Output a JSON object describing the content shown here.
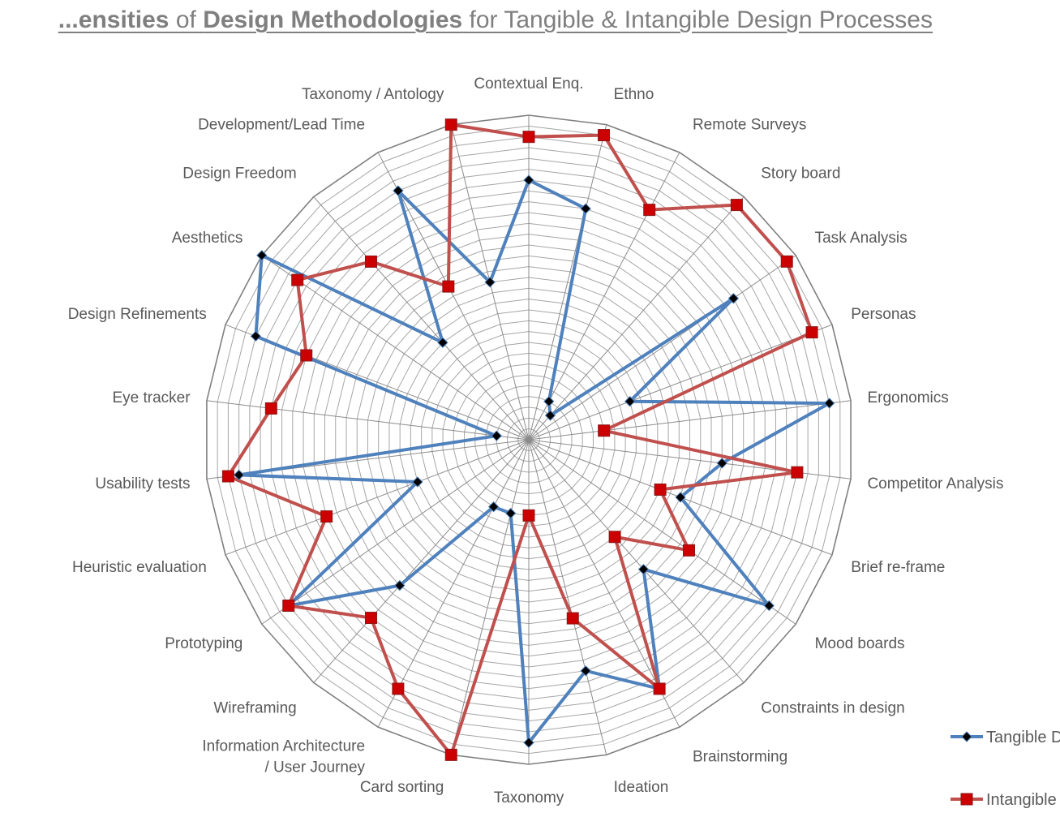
{
  "title": {
    "p1": "...ensities",
    "p2": " of ",
    "p3": "Design Methodologies",
    "p4": " for Tangible & Intangible Design Processes"
  },
  "chart_data": {
    "type": "radar",
    "title": "...ensities of Design Methodologies for Tangible & Intangible Design Processes",
    "categories": [
      "Contextual Enq.",
      "Ethno",
      "Remote Surveys",
      "Story board",
      "Task Analysis",
      "Personas",
      "Ergonomics",
      "Competitor Analysis",
      "Brief re-frame",
      "Mood boards",
      "Constraints in design",
      "Brainstorming",
      "Ideation",
      "Taxonomy",
      "Card sorting",
      "Information Architecture / User Journey",
      "Wireframing",
      "Prototyping",
      "Heuristic evaluation",
      "Usability tests",
      "Eye tracker",
      "Design Refinements",
      "Aesthetics",
      "Design Freedom",
      "Development/Lead Time",
      "Taxonomy / Antology"
    ],
    "rlim": [
      0,
      30
    ],
    "grid": true,
    "legend_position": "right",
    "series": [
      {
        "name": "Tangible D...",
        "color": "#4f81bd",
        "marker": "diamond",
        "values": [
          24,
          22,
          4,
          3,
          23,
          10,
          28,
          18,
          15,
          27,
          16,
          26,
          22,
          28,
          7,
          7,
          18,
          27,
          11,
          27,
          3,
          27,
          30,
          12,
          26,
          15
        ]
      },
      {
        "name": "Intangible...",
        "color": "#c0504d",
        "marker": "square",
        "values": [
          28,
          29,
          24,
          29,
          29,
          28,
          7,
          25,
          13,
          18,
          12,
          26,
          17,
          7,
          30,
          26,
          22,
          27,
          20,
          28,
          24,
          22,
          26,
          22,
          16,
          30
        ]
      }
    ]
  },
  "legend": [
    {
      "label": "Tangible D",
      "color": "#4f81bd"
    },
    {
      "label": "Intangible",
      "color": "#c0504d"
    }
  ]
}
